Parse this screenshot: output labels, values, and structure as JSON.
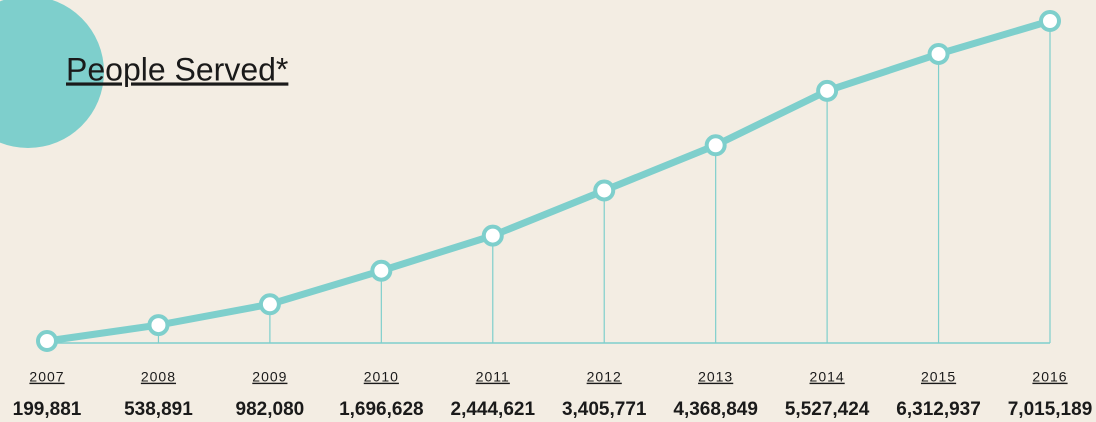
{
  "chart_data": {
    "type": "line",
    "title": "People Served*",
    "categories": [
      "2007",
      "2008",
      "2009",
      "2010",
      "2011",
      "2012",
      "2013",
      "2014",
      "2015",
      "2016"
    ],
    "values": [
      199881,
      538891,
      982080,
      1696628,
      2444621,
      3405771,
      4368849,
      5527424,
      6312937,
      7015189
    ],
    "value_labels": [
      "199,881",
      "538,891",
      "982,080",
      "1,696,628",
      "2,444,621",
      "3,405,771",
      "4,368,849",
      "5,527,424",
      "6,312,937",
      "7,015,189"
    ],
    "color": "#7ecfcc"
  }
}
